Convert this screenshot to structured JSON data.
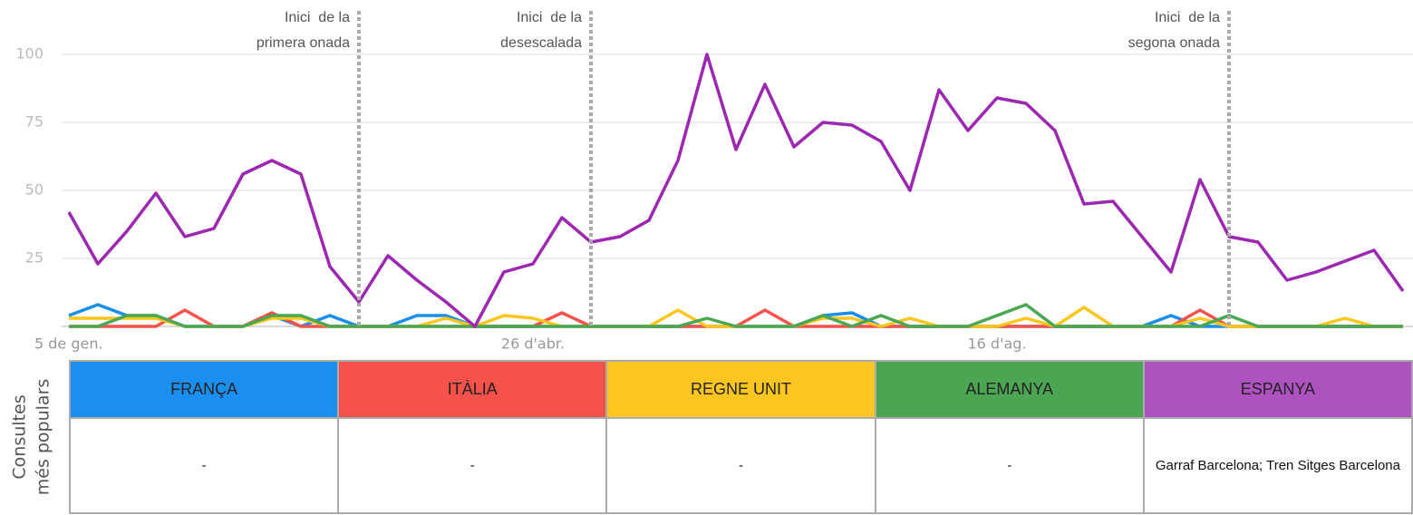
{
  "chart_data": {
    "type": "line",
    "categories": [
      "5 de gen.",
      null,
      null,
      null,
      null,
      null,
      null,
      null,
      null,
      null,
      null,
      null,
      null,
      null,
      null,
      null,
      "26 d'abr.",
      null,
      null,
      null,
      null,
      null,
      null,
      null,
      null,
      null,
      null,
      null,
      null,
      null,
      null,
      null,
      "16 d'ag.",
      null,
      null,
      null,
      null,
      null,
      null,
      null,
      null,
      null,
      null,
      null,
      null,
      null,
      null
    ],
    "series": [
      {
        "name": "FRANÇA",
        "color": "#1a8fe8",
        "values": [
          4,
          8,
          4,
          4,
          0,
          0,
          0,
          4,
          0,
          4,
          0,
          0,
          4,
          4,
          0,
          0,
          0,
          0,
          0,
          0,
          0,
          0,
          0,
          0,
          0,
          0,
          4,
          5,
          0,
          0,
          0,
          0,
          0,
          0,
          0,
          0,
          0,
          0,
          4,
          0,
          0,
          0,
          0,
          0,
          0,
          0,
          0
        ]
      },
      {
        "name": "ITÀLIA",
        "color": "#f4524b",
        "values": [
          0,
          0,
          0,
          0,
          6,
          0,
          0,
          5,
          0,
          0,
          0,
          0,
          0,
          0,
          0,
          0,
          0,
          5,
          0,
          0,
          0,
          0,
          0,
          0,
          6,
          0,
          0,
          0,
          0,
          0,
          0,
          0,
          0,
          0,
          0,
          0,
          0,
          0,
          0,
          6,
          0,
          0,
          0,
          0,
          0,
          0,
          0
        ]
      },
      {
        "name": "REGNE UNIT",
        "color": "#fcc61d",
        "values": [
          3,
          3,
          3,
          3,
          0,
          0,
          0,
          3,
          3,
          0,
          0,
          0,
          0,
          3,
          0,
          4,
          3,
          0,
          0,
          0,
          0,
          6,
          0,
          0,
          0,
          0,
          3,
          3,
          0,
          3,
          0,
          0,
          0,
          3,
          0,
          7,
          0,
          0,
          0,
          3,
          0,
          0,
          0,
          0,
          3,
          0,
          0
        ]
      },
      {
        "name": "ALEMANYA",
        "color": "#4aa752",
        "values": [
          0,
          0,
          4,
          4,
          0,
          0,
          0,
          4,
          4,
          0,
          0,
          0,
          0,
          0,
          0,
          0,
          0,
          0,
          0,
          0,
          0,
          0,
          3,
          0,
          0,
          0,
          4,
          0,
          4,
          0,
          0,
          0,
          4,
          8,
          0,
          0,
          0,
          0,
          0,
          0,
          4,
          0,
          0,
          0,
          0,
          0,
          0
        ]
      },
      {
        "name": "ESPANYA",
        "color": "#9c27b0",
        "values": [
          42,
          23,
          35,
          49,
          33,
          36,
          56,
          61,
          56,
          22,
          9,
          26,
          17,
          9,
          0,
          20,
          23,
          40,
          31,
          33,
          39,
          61,
          100,
          65,
          89,
          66,
          75,
          74,
          68,
          50,
          87,
          72,
          84,
          82,
          72,
          45,
          46,
          33,
          20,
          54,
          33,
          31,
          17,
          20,
          24,
          28,
          13
        ]
      }
    ],
    "header_colors": [
      "#1a8ff0",
      "#f4524b",
      "#fdc51f",
      "#4ca553",
      "#ae52c0"
    ],
    "ylim": [
      0,
      100
    ],
    "yticks": [
      25,
      50,
      75,
      100
    ],
    "grid": true,
    "annotations": [
      {
        "lines": [
          "Inici  de la",
          "primera onada"
        ],
        "x_index": 10
      },
      {
        "lines": [
          "Inici  de la",
          "desescalada"
        ],
        "x_index": 18
      },
      {
        "lines": [
          "Inici  de la",
          "segona onada"
        ],
        "x_index": 40
      }
    ],
    "table": {
      "row_label": [
        "Consultes",
        "més populars"
      ],
      "cells": [
        "-",
        "-",
        "-",
        "-",
        "Garraf Barcelona; Tren Sitges Barcelona"
      ]
    }
  }
}
